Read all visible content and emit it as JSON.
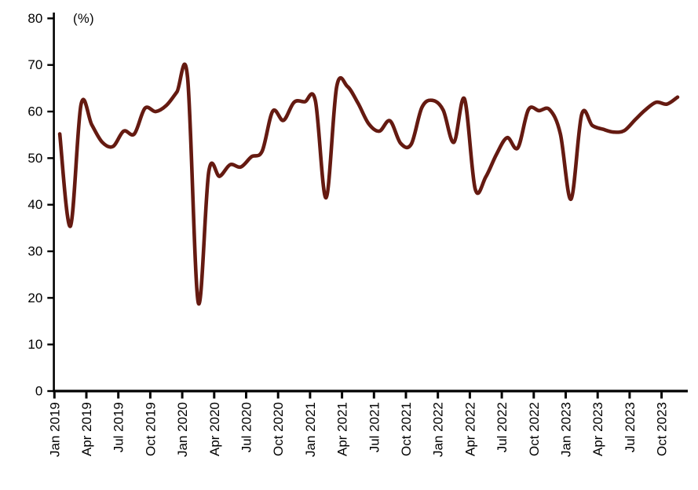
{
  "chart_data": {
    "type": "line",
    "title": "",
    "unit_label": "(%)",
    "grid": false,
    "legend_position": "none",
    "line_color": "#651A11",
    "axis_color": "#000000",
    "ylim": [
      0,
      80
    ],
    "y_ticks": [
      0,
      10,
      20,
      30,
      40,
      50,
      60,
      70,
      80
    ],
    "x_tick_labels": [
      "Jan 2019",
      "Apr 2019",
      "Jul 2019",
      "Oct 2019",
      "Jan 2020",
      "Apr 2020",
      "Jul 2020",
      "Oct 2020",
      "Jan 2021",
      "Apr 2021",
      "Jul 2021",
      "Oct 2021",
      "Jan 2022",
      "Apr 2022",
      "Jul 2022",
      "Oct 2022",
      "Jan 2023",
      "Apr 2023",
      "Jul 2023",
      "Oct 2023"
    ],
    "x": [
      "Jan 2019",
      "Feb 2019",
      "Mar 2019",
      "Apr 2019",
      "May 2019",
      "Jun 2019",
      "Jul 2019",
      "Aug 2019",
      "Sep 2019",
      "Oct 2019",
      "Nov 2019",
      "Dec 2019",
      "Jan 2020",
      "Feb 2020",
      "Mar 2020",
      "Apr 2020",
      "May 2020",
      "Jun 2020",
      "Jul 2020",
      "Aug 2020",
      "Sep 2020",
      "Oct 2020",
      "Nov 2020",
      "Dec 2020",
      "Jan 2021",
      "Feb 2021",
      "Mar 2021",
      "Apr 2021",
      "May 2021",
      "Jun 2021",
      "Jul 2021",
      "Aug 2021",
      "Sep 2021",
      "Oct 2021",
      "Nov 2021",
      "Dec 2021",
      "Jan 2022",
      "Feb 2022",
      "Mar 2022",
      "Apr 2022",
      "May 2022",
      "Jun 2022",
      "Jul 2022",
      "Aug 2022",
      "Sep 2022",
      "Oct 2022",
      "Nov 2022",
      "Dec 2022",
      "Jan 2023",
      "Feb 2023",
      "Mar 2023",
      "Apr 2023",
      "May 2023",
      "Jun 2023",
      "Jul 2023",
      "Aug 2023",
      "Sep 2023",
      "Oct 2023",
      "Nov 2023"
    ],
    "values": [
      55.2,
      35.4,
      61.5,
      57.2,
      53.4,
      52.5,
      55.8,
      55.2,
      60.7,
      60.0,
      61.3,
      64.2,
      67.3,
      19.0,
      47.2,
      46.1,
      48.6,
      48.1,
      50.3,
      51.5,
      60.1,
      58.1,
      62.0,
      62.1,
      62.3,
      41.5,
      65.3,
      65.4,
      61.8,
      57.4,
      55.8,
      58.0,
      53.2,
      53.0,
      60.9,
      62.4,
      60.3,
      53.4,
      62.7,
      43.4,
      46.0,
      50.8,
      54.4,
      52.2,
      60.4,
      60.2,
      60.4,
      55.2,
      41.2,
      59.4,
      57.0,
      56.2,
      55.6,
      55.9,
      58.2,
      60.4,
      62.0,
      61.6,
      63.1
    ]
  }
}
